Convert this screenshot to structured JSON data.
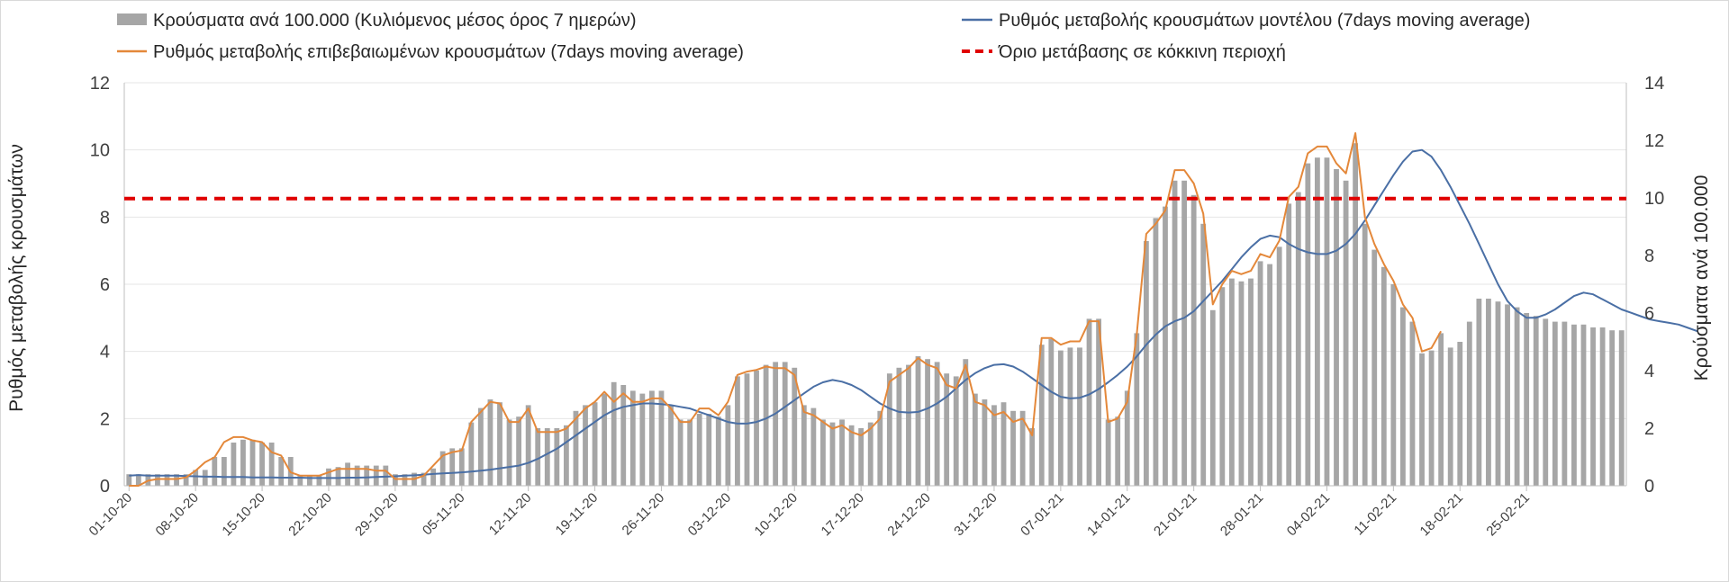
{
  "chart_data": {
    "type": "bar+line",
    "title": "",
    "ylabel_left": "Ρυθμός μεταβολής κρουσμάτων",
    "ylabel_right": "Κρούσματα ανά 100.000",
    "ylim_left": [
      0,
      12
    ],
    "ylim_right": [
      0,
      14
    ],
    "yticks_left": [
      "0",
      "2",
      "4",
      "6",
      "8",
      "10",
      "12"
    ],
    "yticks_right": [
      "0",
      "2",
      "4",
      "6",
      "8",
      "10",
      "12",
      "14"
    ],
    "start_date": "2020-10-01",
    "x_tick_labels": [
      "01-10-20",
      "08-10-20",
      "15-10-20",
      "22-10-20",
      "29-10-20",
      "05-11-20",
      "12-11-20",
      "19-11-20",
      "26-11-20",
      "03-12-20",
      "10-12-20",
      "17-12-20",
      "24-12-20",
      "31-12-20",
      "07-01-21",
      "14-01-21",
      "21-01-21",
      "28-01-21",
      "04-02-21",
      "11-02-21",
      "18-02-21",
      "25-02-21"
    ],
    "legend": {
      "bars": "Κρούσματα ανά 100.000 (Κυλιόμενος μέσος όρος 7 ημερών)",
      "model_line": "Ρυθμός μεταβολής κρουσμάτων μοντέλου (7days moving average)",
      "confirmed_line": "Ρυθμός μεταβολής επιβεβαιωμένων κρουσμάτων (7days moving average)",
      "threshold": "Όριο μετάβασης σε κόκκινη περιοχή"
    },
    "threshold_value": 8.55,
    "colors": {
      "bars": "#a6a6a6",
      "model_line": "#4a6fa5",
      "confirmed_line": "#e4883a",
      "threshold": "#e00000"
    },
    "bars": [
      0.4,
      0.4,
      0.4,
      0.4,
      0.4,
      0.4,
      0.4,
      0.55,
      0.55,
      1,
      1,
      1.5,
      1.6,
      1.6,
      1.5,
      1.5,
      1,
      1,
      0.35,
      0.35,
      0.35,
      0.6,
      0.65,
      0.8,
      0.7,
      0.7,
      0.7,
      0.7,
      0.4,
      0.4,
      0.45,
      0.45,
      0.6,
      1.2,
      1.3,
      1.3,
      2.2,
      2.7,
      3,
      2.9,
      2.3,
      2.4,
      2.8,
      2,
      2,
      2,
      2.1,
      2.6,
      2.8,
      2.9,
      3.2,
      3.6,
      3.5,
      3.3,
      3.2,
      3.3,
      3.3,
      2.8,
      2.3,
      2.3,
      2.5,
      2.5,
      2.4,
      2.8,
      3.8,
      3.9,
      4,
      4.2,
      4.3,
      4.3,
      4.1,
      2.8,
      2.7,
      2.3,
      2.2,
      2.3,
      2.1,
      2.0,
      2.2,
      2.6,
      3.9,
      4.1,
      4.2,
      4.5,
      4.4,
      4.3,
      3.9,
      3.8,
      4.4,
      3.2,
      3.0,
      2.8,
      2.9,
      2.6,
      2.6,
      2.0,
      4.9,
      5.1,
      4.7,
      4.8,
      4.8,
      5.8,
      5.8,
      2.3,
      2.4,
      3.3,
      5.3,
      8.5,
      9.3,
      9.7,
      10.6,
      10.6,
      10.1,
      9.1,
      6.1,
      6.9,
      7.2,
      7.1,
      7.2,
      7.8,
      7.7,
      8.3,
      9.8,
      10.2,
      11.2,
      11.4,
      11.4,
      11.0,
      10.6,
      11.9,
      9.1,
      8.2,
      7.6,
      7.0,
      6.2,
      5.7,
      4.6,
      4.7,
      5.3,
      4.8,
      5.0,
      5.7,
      6.5,
      6.5,
      6.4,
      6.3,
      6.2,
      6.0,
      5.9,
      5.8,
      5.7,
      5.7,
      5.6,
      5.6,
      5.5,
      5.5,
      5.4,
      5.4
    ],
    "confirmed_line": [
      0.0,
      0.0,
      0.15,
      0.2,
      0.2,
      0.2,
      0.25,
      0.45,
      0.7,
      0.85,
      1.3,
      1.45,
      1.45,
      1.35,
      1.3,
      1.0,
      0.9,
      0.4,
      0.3,
      0.3,
      0.3,
      0.4,
      0.5,
      0.5,
      0.5,
      0.5,
      0.45,
      0.45,
      0.2,
      0.2,
      0.2,
      0.3,
      0.6,
      0.9,
      1.0,
      1.05,
      1.9,
      2.2,
      2.5,
      2.45,
      1.9,
      1.9,
      2.3,
      1.6,
      1.6,
      1.6,
      1.7,
      2.0,
      2.3,
      2.5,
      2.8,
      2.5,
      2.75,
      2.5,
      2.5,
      2.6,
      2.6,
      2.3,
      1.9,
      1.9,
      2.3,
      2.3,
      2.1,
      2.5,
      3.3,
      3.4,
      3.45,
      3.55,
      3.5,
      3.5,
      3.3,
      2.2,
      2.1,
      1.9,
      1.7,
      1.8,
      1.6,
      1.5,
      1.7,
      2.0,
      3.1,
      3.3,
      3.5,
      3.8,
      3.6,
      3.5,
      3.0,
      2.9,
      3.6,
      2.5,
      2.4,
      2.1,
      2.2,
      1.9,
      2.0,
      1.5,
      4.4,
      4.4,
      4.2,
      4.3,
      4.3,
      4.9,
      4.9,
      1.9,
      2.0,
      2.5,
      4.5,
      7.5,
      7.8,
      8.2,
      9.4,
      9.4,
      9.0,
      8.1,
      5.4,
      6.0,
      6.4,
      6.3,
      6.4,
      6.9,
      6.8,
      7.3,
      8.6,
      8.9,
      9.9,
      10.1,
      10.1,
      9.6,
      9.3,
      10.5,
      8.0,
      7.2,
      6.6,
      6.1,
      5.4,
      5.0,
      4.0,
      4.1,
      4.6
    ],
    "model_line": [
      0.3,
      0.32,
      0.3,
      0.3,
      0.3,
      0.3,
      0.29,
      0.28,
      0.27,
      0.27,
      0.26,
      0.26,
      0.26,
      0.25,
      0.25,
      0.25,
      0.24,
      0.24,
      0.24,
      0.23,
      0.23,
      0.23,
      0.23,
      0.24,
      0.24,
      0.25,
      0.26,
      0.27,
      0.28,
      0.3,
      0.31,
      0.33,
      0.35,
      0.37,
      0.38,
      0.4,
      0.42,
      0.45,
      0.48,
      0.52,
      0.56,
      0.6,
      0.68,
      0.8,
      0.95,
      1.1,
      1.3,
      1.5,
      1.7,
      1.9,
      2.1,
      2.25,
      2.35,
      2.4,
      2.45,
      2.45,
      2.43,
      2.4,
      2.35,
      2.3,
      2.2,
      2.1,
      2.0,
      1.9,
      1.85,
      1.85,
      1.9,
      2.0,
      2.15,
      2.35,
      2.55,
      2.75,
      2.95,
      3.08,
      3.15,
      3.1,
      3.0,
      2.85,
      2.65,
      2.45,
      2.3,
      2.2,
      2.18,
      2.2,
      2.3,
      2.45,
      2.65,
      2.9,
      3.15,
      3.35,
      3.5,
      3.6,
      3.62,
      3.55,
      3.4,
      3.2,
      3.0,
      2.8,
      2.65,
      2.6,
      2.62,
      2.72,
      2.88,
      3.08,
      3.3,
      3.55,
      3.85,
      4.2,
      4.5,
      4.75,
      4.9,
      5.0,
      5.2,
      5.5,
      5.8,
      6.1,
      6.45,
      6.8,
      7.1,
      7.35,
      7.45,
      7.4,
      7.2,
      7.05,
      6.95,
      6.9,
      6.9,
      7.0,
      7.2,
      7.5,
      7.9,
      8.35,
      8.8,
      9.25,
      9.65,
      9.95,
      10.0,
      9.8,
      9.4,
      8.9,
      8.35,
      7.8,
      7.2,
      6.6,
      6.0,
      5.5,
      5.2,
      5.0,
      5.0,
      5.1,
      5.25,
      5.45,
      5.65,
      5.75,
      5.7,
      5.55,
      5.4,
      5.25,
      5.15,
      5.05,
      4.95,
      4.9,
      4.85,
      4.8,
      4.7,
      4.6
    ]
  }
}
